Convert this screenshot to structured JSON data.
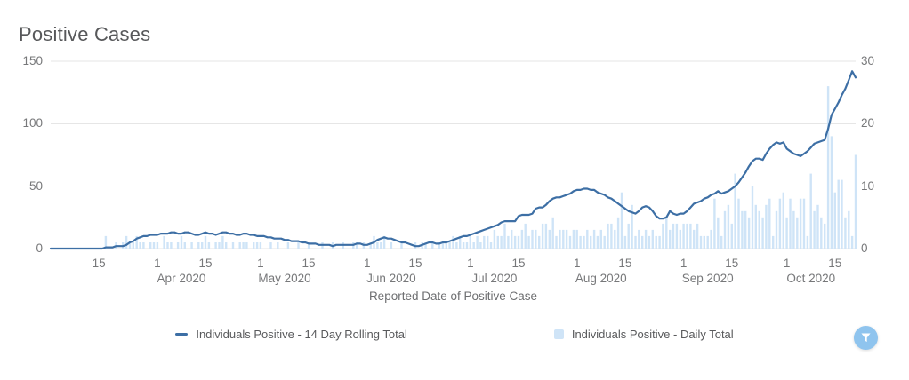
{
  "header": {
    "title": "Positive Cases"
  },
  "colors": {
    "grid": "#e6e6e6",
    "axis_text": "#77787a",
    "title_text": "#57585a",
    "line": "#3d6fa5",
    "bar": "#cfe4f7",
    "filter_button_bg": "#8fc4ee",
    "filter_icon": "#ffffff"
  },
  "chart_data": {
    "type": "combo",
    "title": "Positive Cases",
    "xlabel": "Reported Date of Positive Case",
    "start_date": "2020-03-01",
    "frequency": "daily",
    "grid": "horizontal",
    "legend_position": "bottom-center",
    "left_axis": {
      "ticks": [
        0,
        50,
        100,
        150
      ],
      "max": 150
    },
    "right_axis": {
      "ticks": [
        0,
        10,
        20,
        30
      ],
      "max": 30
    },
    "x_ticks": [
      {
        "i": 14,
        "label": "15"
      },
      {
        "i": 31,
        "label": "1",
        "month": "Apr 2020"
      },
      {
        "i": 45,
        "label": "15"
      },
      {
        "i": 61,
        "label": "1",
        "month": "May 2020"
      },
      {
        "i": 75,
        "label": "15"
      },
      {
        "i": 92,
        "label": "1",
        "month": "Jun 2020"
      },
      {
        "i": 106,
        "label": "15"
      },
      {
        "i": 122,
        "label": "1",
        "month": "Jul 2020"
      },
      {
        "i": 136,
        "label": "15"
      },
      {
        "i": 153,
        "label": "1",
        "month": "Aug 2020"
      },
      {
        "i": 167,
        "label": "15"
      },
      {
        "i": 184,
        "label": "1",
        "month": "Sep 2020"
      },
      {
        "i": 198,
        "label": "15"
      },
      {
        "i": 214,
        "label": "1",
        "month": "Oct 2020"
      },
      {
        "i": 228,
        "label": "15"
      }
    ],
    "series": [
      {
        "name": "Individuals Positive - 14 Day Rolling Total",
        "type": "line",
        "axis": "left",
        "color": "#3d6fa5",
        "values": [
          0,
          0,
          0,
          0,
          0,
          0,
          0,
          0,
          0,
          0,
          0,
          0,
          0,
          0,
          0,
          0,
          1,
          1,
          1,
          2,
          2,
          2,
          3,
          5,
          6,
          8,
          9,
          10,
          10,
          11,
          11,
          11,
          12,
          12,
          12,
          13,
          13,
          12,
          12,
          13,
          13,
          12,
          11,
          11,
          12,
          13,
          12,
          12,
          11,
          12,
          13,
          13,
          12,
          12,
          11,
          11,
          12,
          12,
          11,
          11,
          10,
          10,
          10,
          9,
          9,
          8,
          8,
          8,
          7,
          7,
          6,
          6,
          6,
          5,
          5,
          4,
          4,
          4,
          3,
          3,
          3,
          3,
          2,
          3,
          3,
          3,
          3,
          3,
          3,
          4,
          4,
          3,
          3,
          4,
          5,
          7,
          8,
          9,
          8,
          8,
          7,
          6,
          5,
          5,
          4,
          3,
          2,
          2,
          3,
          4,
          5,
          5,
          4,
          4,
          5,
          5,
          6,
          7,
          8,
          9,
          10,
          10,
          11,
          12,
          13,
          14,
          15,
          16,
          17,
          18,
          19,
          21,
          22,
          22,
          22,
          22,
          26,
          27,
          27,
          27,
          28,
          32,
          33,
          33,
          35,
          38,
          40,
          41,
          41,
          42,
          43,
          44,
          46,
          47,
          47,
          48,
          48,
          47,
          47,
          45,
          44,
          43,
          41,
          40,
          38,
          36,
          34,
          32,
          30,
          29,
          28,
          30,
          33,
          34,
          33,
          30,
          26,
          24,
          24,
          25,
          30,
          28,
          27,
          28,
          28,
          30,
          33,
          36,
          37,
          38,
          40,
          41,
          43,
          44,
          46,
          44,
          45,
          46,
          48,
          50,
          53,
          57,
          61,
          66,
          70,
          72,
          72,
          71,
          76,
          80,
          83,
          85,
          84,
          85,
          80,
          78,
          76,
          75,
          74,
          76,
          78,
          81,
          84,
          85,
          86,
          87,
          96,
          107,
          112,
          117,
          123,
          128,
          135,
          142,
          137
        ]
      },
      {
        "name": "Individuals Positive - Daily Total",
        "type": "bar",
        "axis": "right",
        "color": "#cfe4f7",
        "values": [
          0,
          0,
          0,
          0,
          0,
          0,
          0,
          0,
          0,
          0,
          0,
          0,
          0,
          0,
          0,
          0,
          2,
          0,
          0,
          1,
          0,
          1,
          2,
          1,
          1,
          2,
          1,
          1,
          0,
          1,
          1,
          1,
          0,
          2,
          1,
          1,
          0,
          1,
          2,
          1,
          0,
          1,
          0,
          1,
          1,
          2,
          1,
          0,
          1,
          1,
          2,
          1,
          0,
          1,
          0,
          1,
          1,
          1,
          0,
          1,
          1,
          1,
          0,
          0,
          1,
          0,
          1,
          0,
          0,
          1,
          0,
          0,
          1,
          0,
          0,
          1,
          0,
          0,
          0,
          1,
          0,
          0,
          1,
          0,
          0,
          1,
          0,
          0,
          1,
          1,
          0,
          1,
          0,
          1,
          2,
          1,
          1,
          2,
          0,
          1,
          0,
          0,
          1,
          0,
          0,
          0,
          1,
          0,
          1,
          1,
          0,
          1,
          0,
          1,
          1,
          1,
          1,
          2,
          1,
          2,
          1,
          1,
          2,
          1,
          2,
          1,
          2,
          2,
          1,
          3,
          2,
          2,
          4,
          2,
          3,
          2,
          2,
          3,
          4,
          2,
          3,
          3,
          2,
          4,
          4,
          3,
          5,
          2,
          3,
          3,
          3,
          2,
          3,
          3,
          2,
          2,
          3,
          2,
          3,
          2,
          3,
          2,
          4,
          4,
          3,
          5,
          9,
          2,
          4,
          7,
          2,
          3,
          2,
          3,
          2,
          3,
          2,
          2,
          4,
          5,
          3,
          4,
          4,
          3,
          4,
          4,
          4,
          3,
          4,
          2,
          2,
          2,
          3,
          8,
          5,
          2,
          6,
          7,
          4,
          12,
          8,
          6,
          6,
          5,
          10,
          7,
          6,
          5,
          7,
          8,
          2,
          6,
          8,
          9,
          5,
          8,
          6,
          5,
          8,
          8,
          2,
          12,
          6,
          7,
          5,
          4,
          26,
          18,
          9,
          11,
          11,
          5,
          6,
          2,
          15
        ]
      }
    ]
  },
  "filter_button": {
    "icon": "filter-funnel-icon"
  }
}
